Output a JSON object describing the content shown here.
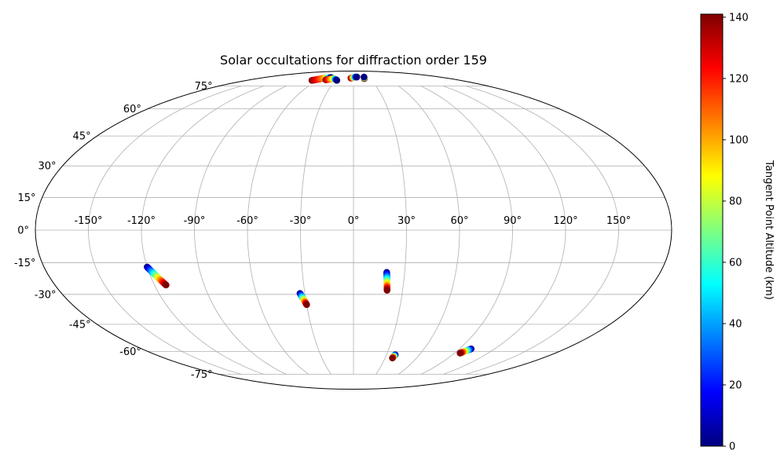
{
  "chart_data": {
    "type": "scatter",
    "projection": "mollweide",
    "title": "Solar occultations for diffraction order 159",
    "xlabel": "",
    "ylabel": "",
    "xlim": [
      -180,
      180
    ],
    "ylim": [
      -90,
      90
    ],
    "grid": true,
    "lon_ticks": [
      -150,
      -120,
      -90,
      -60,
      -30,
      0,
      30,
      60,
      90,
      120,
      150
    ],
    "lon_tick_labels": [
      "-150°",
      "-120°",
      "-90°",
      "-60°",
      "-30°",
      "0°",
      "30°",
      "60°",
      "90°",
      "120°",
      "150°"
    ],
    "lat_ticks": [
      75,
      60,
      45,
      30,
      15,
      0,
      -15,
      -30,
      -45,
      -60,
      -75
    ],
    "lat_tick_labels": [
      "75°",
      "60°",
      "45°",
      "30°",
      "15°",
      "0°",
      "-15°",
      "-30°",
      "-45°",
      "-60°",
      "-75°"
    ],
    "colormap": "jet",
    "colorbar": {
      "label": "Tangent Point Altitude (km)",
      "range": [
        0,
        141
      ],
      "ticks": [
        0,
        20,
        40,
        60,
        80,
        100,
        120,
        140
      ],
      "tick_labels": [
        "0",
        "20",
        "40",
        "60",
        "80",
        "100",
        "120",
        "140"
      ]
    },
    "series": [
      {
        "points": [
          [
            -120,
            -17,
            0
          ],
          [
            -113,
            -25.5,
            141
          ]
        ]
      },
      {
        "points": [
          [
            -33,
            -29.5,
            0
          ],
          [
            -30,
            -35,
            141
          ]
        ]
      },
      {
        "points": [
          [
            19.5,
            -19.5,
            0
          ],
          [
            20.5,
            -28,
            141
          ]
        ]
      },
      {
        "points": [
          [
            38,
            -62,
            0
          ],
          [
            37,
            -64,
            141
          ]
        ]
      },
      {
        "points": [
          [
            100,
            -58.5,
            0
          ],
          [
            95,
            -61,
            141
          ]
        ]
      },
      {
        "points": [
          [
            -70,
            79.5,
            141
          ],
          [
            -55,
            81.5,
            100
          ],
          [
            -47,
            82,
            40
          ],
          [
            -45,
            82,
            0
          ]
        ]
      },
      {
        "points": [
          [
            -48,
            80,
            141
          ],
          [
            -36,
            81,
            80
          ],
          [
            -30,
            80,
            20
          ],
          [
            -28,
            79.5,
            0
          ]
        ]
      },
      {
        "points": [
          [
            -5,
            81.5,
            141
          ],
          [
            2,
            82.5,
            60
          ],
          [
            7,
            82.5,
            0
          ]
        ]
      },
      {
        "points": [
          [
            20,
            81,
            141
          ],
          [
            22,
            82.5,
            0
          ]
        ]
      }
    ]
  }
}
